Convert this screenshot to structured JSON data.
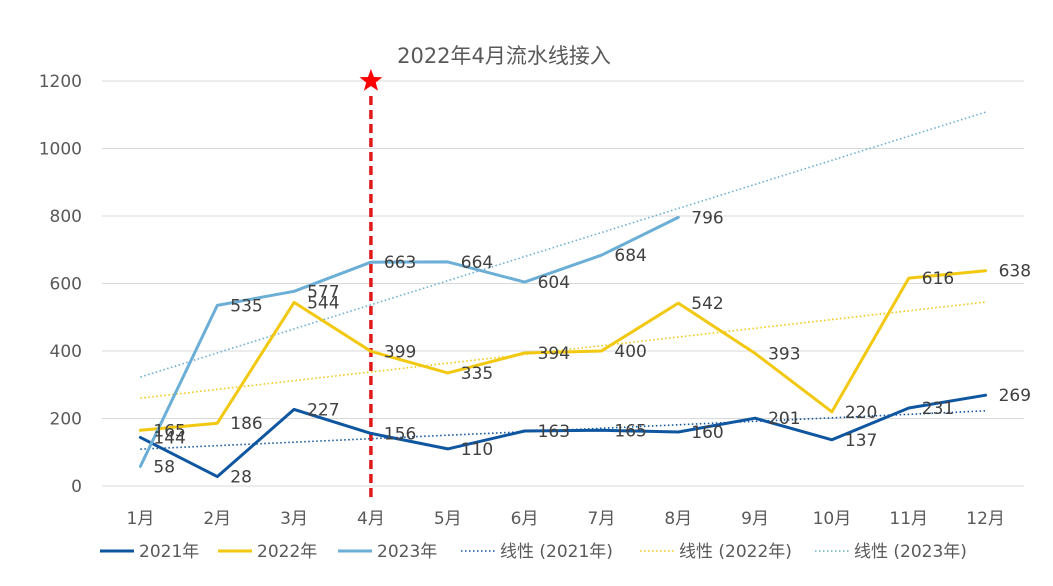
{
  "chart_data": {
    "type": "line",
    "title": "2022年4月流水线接入",
    "categories": [
      "1月",
      "2月",
      "3月",
      "4月",
      "5月",
      "6月",
      "7月",
      "8月",
      "9月",
      "10月",
      "11月",
      "12月"
    ],
    "ylim": [
      0,
      1200
    ],
    "yticks": [
      0,
      200,
      400,
      600,
      800,
      1000,
      1200
    ],
    "grid": true,
    "legend_position": "bottom",
    "series": [
      {
        "name": "2021年",
        "color": "#0f56a1",
        "values": [
          144,
          28,
          227,
          156,
          110,
          163,
          165,
          160,
          201,
          137,
          231,
          269
        ]
      },
      {
        "name": "2022年",
        "color": "#f2c811",
        "values": [
          165,
          186,
          544,
          399,
          335,
          394,
          400,
          542,
          393,
          220,
          616,
          638
        ]
      },
      {
        "name": "2023年",
        "color": "#6baed6",
        "values": [
          58,
          535,
          577,
          663,
          664,
          604,
          684,
          796,
          null,
          null,
          null,
          null
        ]
      }
    ],
    "trendlines": [
      {
        "name": "线性 (2021年)",
        "color": "#0f56a1",
        "type": "linear",
        "of": "2021年"
      },
      {
        "name": "线性 (2022年)",
        "color": "#f2c811",
        "type": "linear",
        "of": "2022年"
      },
      {
        "name": "线性 (2023年)",
        "color": "#6baed6",
        "type": "linear",
        "of": "2023年"
      }
    ],
    "marker": {
      "category": "4月",
      "type": "star",
      "line_color": "#e0191b",
      "line_style": "dashed"
    }
  }
}
